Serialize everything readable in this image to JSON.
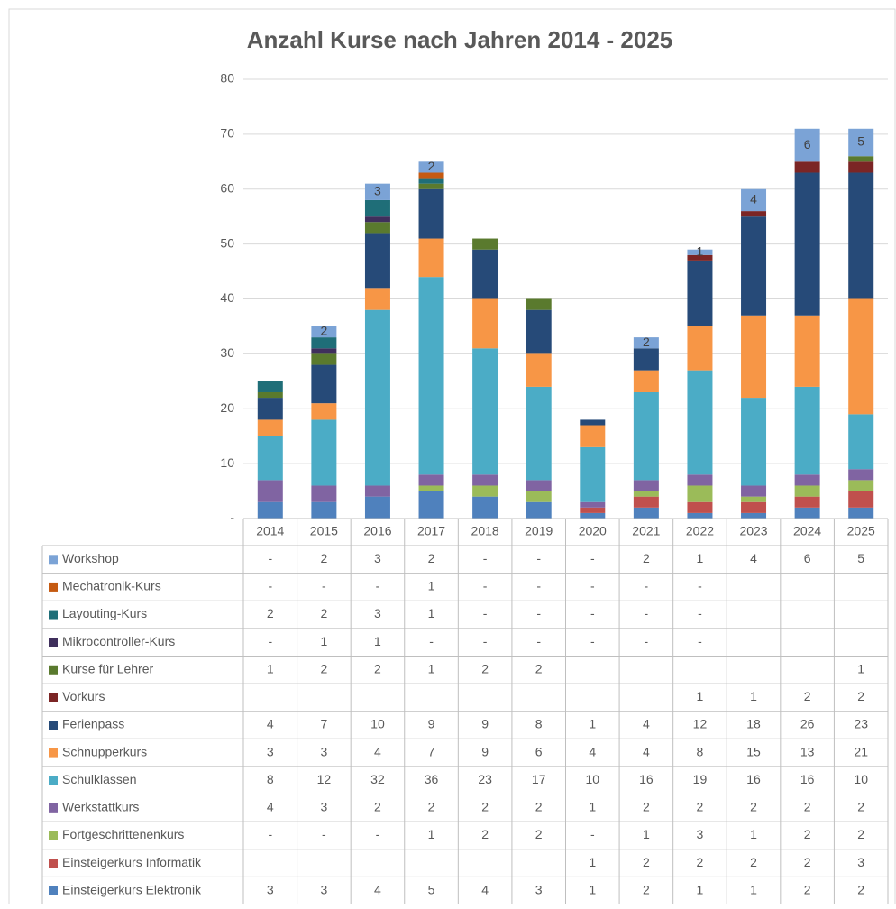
{
  "chart_data": {
    "type": "bar",
    "stacked": true,
    "title": "Anzahl Kurse nach Jahren 2014 - 2025",
    "categories": [
      "2014",
      "2015",
      "2016",
      "2017",
      "2018",
      "2019",
      "2020",
      "2021",
      "2022",
      "2023",
      "2024",
      "2025"
    ],
    "ylim": [
      0,
      80
    ],
    "yticks": [
      {
        "value": 0,
        "label": "-"
      },
      10,
      20,
      30,
      40,
      50,
      60,
      70,
      80
    ],
    "grid": true,
    "data_table": true,
    "series": [
      {
        "name": "Workshop",
        "color": "#7ba3d6",
        "values": [
          0,
          2,
          3,
          2,
          0,
          0,
          0,
          2,
          1,
          4,
          6,
          5
        ],
        "value_labels": [
          "-",
          "2",
          "3",
          "2",
          "-",
          "-",
          "-",
          "2",
          "1",
          "4",
          "6",
          "5"
        ]
      },
      {
        "name": "Mechatronik-Kurs",
        "color": "#c55a11",
        "values": [
          0,
          0,
          0,
          1,
          0,
          0,
          0,
          0,
          0,
          null,
          null,
          null
        ],
        "value_labels": [
          "-",
          "-",
          "-",
          "1",
          "-",
          "-",
          "-",
          "-",
          "-",
          null,
          null,
          null
        ]
      },
      {
        "name": "Layouting-Kurs",
        "color": "#1f6e78",
        "values": [
          2,
          2,
          3,
          1,
          0,
          0,
          0,
          0,
          0,
          null,
          null,
          null
        ],
        "value_labels": [
          "2",
          "2",
          "3",
          "1",
          "-",
          "-",
          "-",
          "-",
          "-",
          null,
          null,
          null
        ]
      },
      {
        "name": "Mikrocontroller-Kurs",
        "color": "#3f2f5c",
        "values": [
          0,
          1,
          1,
          0,
          0,
          0,
          0,
          0,
          0,
          null,
          null,
          null
        ],
        "value_labels": [
          "-",
          "1",
          "1",
          "-",
          "-",
          "-",
          "-",
          "-",
          "-",
          null,
          null,
          null
        ]
      },
      {
        "name": "Kurse für Lehrer",
        "color": "#5a7a2e",
        "values": [
          1,
          2,
          2,
          1,
          2,
          2,
          null,
          null,
          null,
          null,
          null,
          1
        ]
      },
      {
        "name": "Vorkurs",
        "color": "#7b2525",
        "values": [
          null,
          null,
          null,
          null,
          null,
          null,
          null,
          null,
          1,
          1,
          2,
          2
        ]
      },
      {
        "name": "Ferienpass",
        "color": "#264a78",
        "values": [
          4,
          7,
          10,
          9,
          9,
          8,
          1,
          4,
          12,
          18,
          26,
          23
        ]
      },
      {
        "name": "Schnupperkurs",
        "color": "#f79646",
        "values": [
          3,
          3,
          4,
          7,
          9,
          6,
          4,
          4,
          8,
          15,
          13,
          21
        ]
      },
      {
        "name": "Schulklassen",
        "color": "#4bacc6",
        "values": [
          8,
          12,
          32,
          36,
          23,
          17,
          10,
          16,
          19,
          16,
          16,
          10
        ]
      },
      {
        "name": "Werkstattkurs",
        "color": "#8064a2",
        "values": [
          4,
          3,
          2,
          2,
          2,
          2,
          1,
          2,
          2,
          2,
          2,
          2
        ]
      },
      {
        "name": "Fortgeschrittenenkurs",
        "color": "#9bbb59",
        "values": [
          0,
          0,
          0,
          1,
          2,
          2,
          0,
          1,
          3,
          1,
          2,
          2
        ],
        "value_labels": [
          "-",
          "-",
          "-",
          "1",
          "2",
          "2",
          "-",
          "1",
          "3",
          "1",
          "2",
          "2"
        ]
      },
      {
        "name": "Einsteigerkurs Informatik",
        "color": "#c0504d",
        "values": [
          null,
          null,
          null,
          null,
          null,
          null,
          1,
          2,
          2,
          2,
          2,
          3
        ]
      },
      {
        "name": "Einsteigerkurs Elektronik",
        "color": "#4f81bd",
        "values": [
          3,
          3,
          4,
          5,
          4,
          3,
          1,
          2,
          1,
          1,
          2,
          2
        ]
      }
    ]
  }
}
